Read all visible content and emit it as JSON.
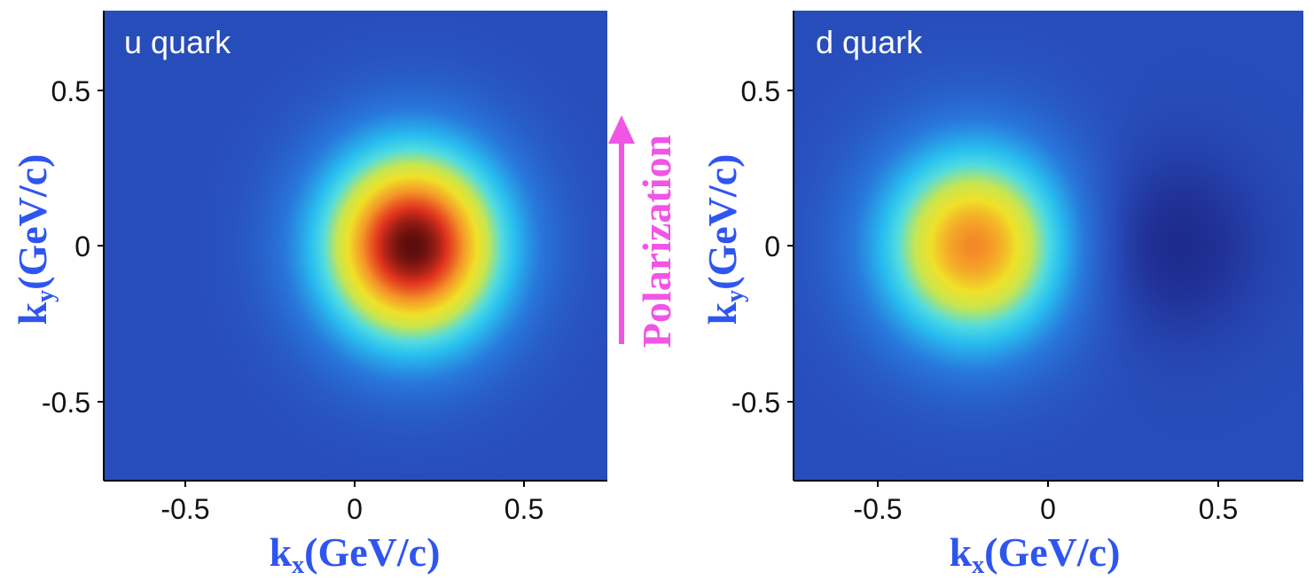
{
  "chart_data": [
    {
      "type": "heatmap",
      "title": "u quark",
      "xlabel_main": "k",
      "xlabel_sub": "x",
      "xlabel_unit": "(GeV/c)",
      "ylabel_main": "k",
      "ylabel_sub": "y",
      "ylabel_unit": "(GeV/c)",
      "xlim": [
        -0.75,
        0.75
      ],
      "ylim": [
        -0.75,
        0.75
      ],
      "xticks": [
        -0.5,
        0,
        0.5
      ],
      "yticks": [
        -0.5,
        0,
        0.5
      ],
      "xtick_labels": [
        "-0.5",
        "0",
        "0.5"
      ],
      "ytick_labels": [
        "-0.5",
        "0",
        "0.5"
      ],
      "grid": false,
      "colormap": "jet",
      "peaks": [
        {
          "kx": 0.17,
          "ky": 0.0,
          "relative_intensity": 1.0,
          "sigma_x": 0.2,
          "sigma_y": 0.23
        }
      ]
    },
    {
      "type": "heatmap",
      "title": "d quark",
      "xlabel_main": "k",
      "xlabel_sub": "x",
      "xlabel_unit": "(GeV/c)",
      "ylabel_main": "k",
      "ylabel_sub": "y",
      "ylabel_unit": "(GeV/c)",
      "xlim": [
        -0.75,
        0.75
      ],
      "ylim": [
        -0.75,
        0.75
      ],
      "xticks": [
        -0.5,
        0,
        0.5
      ],
      "yticks": [
        -0.5,
        0,
        0.5
      ],
      "xtick_labels": [
        "-0.5",
        "0",
        "0.5"
      ],
      "ytick_labels": [
        "-0.5",
        "0",
        "0.5"
      ],
      "grid": false,
      "colormap": "jet",
      "peaks": [
        {
          "kx": -0.22,
          "ky": 0.0,
          "relative_intensity": 0.77,
          "sigma_x": 0.2,
          "sigma_y": 0.23
        },
        {
          "kx": 0.37,
          "ky": 0.0,
          "relative_intensity": -0.15,
          "sigma_x": 0.17,
          "sigma_y": 0.2
        }
      ]
    }
  ],
  "annotation": {
    "polarization_label": "Polarization",
    "arrow_direction": "up"
  },
  "colors": {
    "axis_label": "#2f55f0",
    "polarization": "#f055e6",
    "panel_title": "#ffffff",
    "tick_text": "#111111"
  }
}
